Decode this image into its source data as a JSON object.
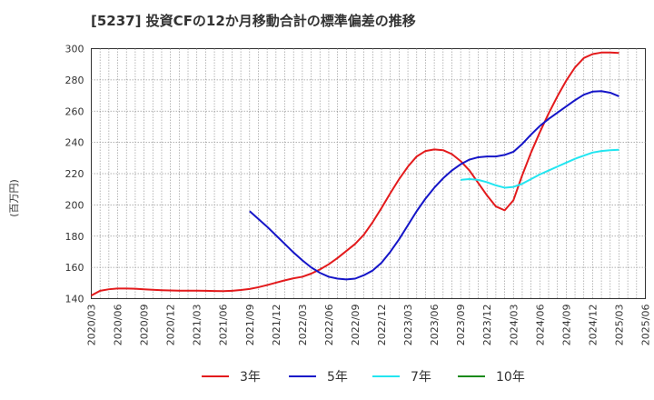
{
  "title": "[5237]  投資CFの12か月移動合計の標準偏差の推移",
  "chart_data": {
    "type": "line",
    "title": "[5237]  投資CFの12か月移動合計の標準偏差の推移",
    "ylabel": "(百万円)",
    "xlabel": "",
    "ylim": [
      140,
      300
    ],
    "yticks": [
      140,
      160,
      180,
      200,
      220,
      240,
      260,
      280,
      300
    ],
    "x_tick_labels": [
      "2020/03",
      "2020/06",
      "2020/09",
      "2020/12",
      "2021/03",
      "2021/06",
      "2021/09",
      "2021/12",
      "2022/03",
      "2022/06",
      "2022/09",
      "2022/12",
      "2023/03",
      "2023/06",
      "2023/09",
      "2023/12",
      "2024/03",
      "2024/06",
      "2024/09",
      "2024/12",
      "2025/03",
      "2025/06"
    ],
    "grid": true,
    "legend_position": "bottom",
    "series": [
      {
        "name": "3年",
        "color": "#e31a1c",
        "x": [
          "2020/03",
          "2020/04",
          "2020/05",
          "2020/06",
          "2020/07",
          "2020/08",
          "2020/09",
          "2020/10",
          "2020/11",
          "2020/12",
          "2021/01",
          "2021/02",
          "2021/03",
          "2021/04",
          "2021/05",
          "2021/06",
          "2021/07",
          "2021/08",
          "2021/09",
          "2021/10",
          "2021/11",
          "2021/12",
          "2022/01",
          "2022/02",
          "2022/03",
          "2022/04",
          "2022/05",
          "2022/06",
          "2022/07",
          "2022/08",
          "2022/09",
          "2022/10",
          "2022/11",
          "2022/12",
          "2023/01",
          "2023/02",
          "2023/03",
          "2023/04",
          "2023/05",
          "2023/06",
          "2023/07",
          "2023/08",
          "2023/09",
          "2023/10",
          "2023/11",
          "2023/12",
          "2024/01",
          "2024/02",
          "2024/03",
          "2024/04",
          "2024/05",
          "2024/06",
          "2024/07",
          "2024/08",
          "2024/09",
          "2024/10",
          "2024/11",
          "2024/12",
          "2025/01",
          "2025/02",
          "2025/03"
        ],
        "values": [
          142,
          145,
          146,
          146.5,
          146.5,
          146.3,
          146,
          145.7,
          145.4,
          145.2,
          145.1,
          145.1,
          145.1,
          145,
          144.9,
          144.8,
          145,
          145.5,
          146.2,
          147.3,
          148.7,
          150.2,
          151.7,
          153,
          154,
          156,
          158.7,
          162,
          166,
          170.5,
          175,
          181,
          189,
          198,
          207.5,
          216.5,
          224.5,
          231,
          234.5,
          235.5,
          235,
          232.5,
          228,
          222,
          214,
          206,
          199,
          196.5,
          203,
          219,
          233.5,
          246.5,
          258.5,
          269.5,
          279.5,
          288,
          294,
          296.5,
          297.5,
          297.5,
          297.2
        ]
      },
      {
        "name": "5年",
        "color": "#1515c8",
        "x": [
          "2021/09",
          "2021/10",
          "2021/11",
          "2021/12",
          "2022/01",
          "2022/02",
          "2022/03",
          "2022/04",
          "2022/05",
          "2022/06",
          "2022/07",
          "2022/08",
          "2022/09",
          "2022/10",
          "2022/11",
          "2022/12",
          "2023/01",
          "2023/02",
          "2023/03",
          "2023/04",
          "2023/05",
          "2023/06",
          "2023/07",
          "2023/08",
          "2023/09",
          "2023/10",
          "2023/11",
          "2023/12",
          "2024/01",
          "2024/02",
          "2024/03",
          "2024/04",
          "2024/05",
          "2024/06",
          "2024/07",
          "2024/08",
          "2024/09",
          "2024/10",
          "2024/11",
          "2024/12",
          "2025/01",
          "2025/02",
          "2025/03"
        ],
        "values": [
          196,
          191,
          186,
          180.5,
          175,
          169.5,
          164.5,
          160,
          156.5,
          154,
          152.8,
          152.3,
          152.8,
          155,
          158,
          163,
          170,
          178,
          187,
          196,
          204,
          211,
          217,
          222,
          226,
          229,
          230.5,
          231,
          231,
          232,
          234,
          239,
          245,
          250.5,
          255,
          259,
          263,
          267,
          270.5,
          272.5,
          272.8,
          271.8,
          269.5
        ]
      },
      {
        "name": "7年",
        "color": "#22e5f0",
        "x": [
          "2023/09",
          "2023/10",
          "2023/11",
          "2023/12",
          "2024/01",
          "2024/02",
          "2024/03",
          "2024/04",
          "2024/05",
          "2024/06",
          "2024/07",
          "2024/08",
          "2024/09",
          "2024/10",
          "2024/11",
          "2024/12",
          "2025/01",
          "2025/02",
          "2025/03"
        ],
        "values": [
          216,
          216.5,
          216,
          214.5,
          212.5,
          211,
          211.5,
          213.5,
          216.5,
          219.5,
          222,
          224.5,
          227,
          229.5,
          231.5,
          233.5,
          234.5,
          235,
          235.3
        ]
      },
      {
        "name": "10年",
        "color": "#1a8a1a",
        "x": [],
        "values": []
      }
    ]
  }
}
